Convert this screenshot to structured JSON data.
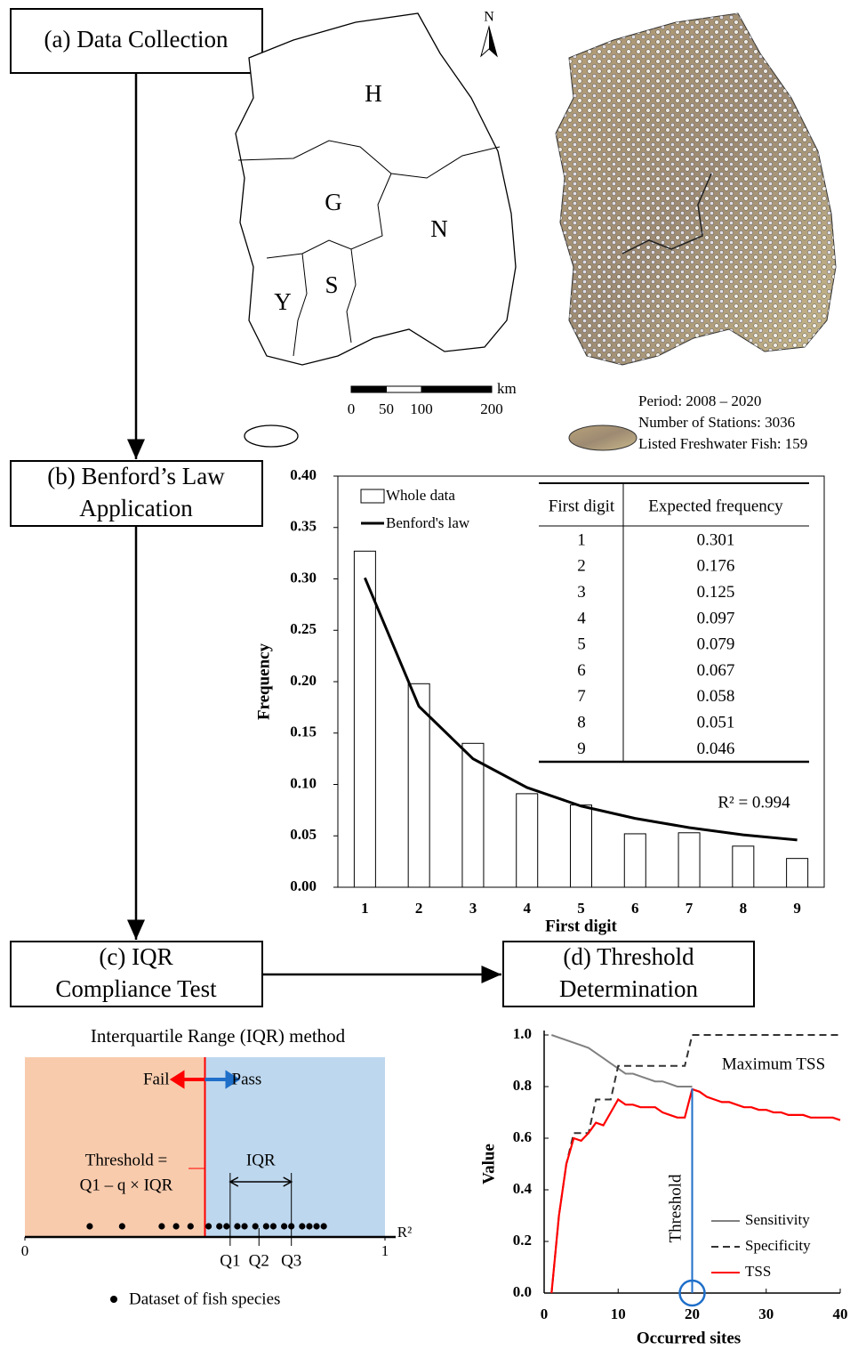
{
  "steps": [
    {
      "lines": [
        "(a) Data Collection"
      ]
    },
    {
      "lines": [
        "(b) Benford’s Law",
        "Application"
      ]
    },
    {
      "lines": [
        "(c) IQR",
        "Compliance Test"
      ]
    },
    {
      "lines": [
        "(d) Threshold",
        "Determination"
      ]
    }
  ],
  "map": {
    "north": "N",
    "regions": [
      "H",
      "G",
      "N",
      "Y",
      "S"
    ],
    "scale": {
      "ticks": [
        0,
        50,
        100,
        200
      ],
      "unit": "km"
    },
    "info": [
      "Period: 2008 – 2020",
      "Number of Stations: 3036",
      "Listed Freshwater Fish: 159"
    ]
  },
  "chart_data": [
    {
      "type": "bar_line",
      "x_label": "First digit",
      "y_label": "Frequency",
      "categories": [
        1,
        2,
        3,
        4,
        5,
        6,
        7,
        8,
        9
      ],
      "series": [
        {
          "name": "Whole data",
          "type": "bar",
          "color": "#ffffff",
          "values": [
            0.327,
            0.198,
            0.14,
            0.091,
            0.08,
            0.052,
            0.053,
            0.04,
            0.028
          ]
        },
        {
          "name": "Benford's law",
          "type": "line",
          "color": "#000000",
          "values": [
            0.301,
            0.176,
            0.125,
            0.097,
            0.079,
            0.067,
            0.058,
            0.051,
            0.046
          ]
        }
      ],
      "ylim": [
        0,
        0.4
      ],
      "yticks": [
        {
          "value": 0,
          "label": "0.00"
        },
        {
          "value": 0.05,
          "label": "0.05"
        },
        {
          "value": 0.1,
          "label": "0.10"
        },
        {
          "value": 0.15,
          "label": "0.15"
        },
        {
          "value": 0.2,
          "label": "0.20"
        },
        {
          "value": 0.25,
          "label": "0.25"
        },
        {
          "value": 0.3,
          "label": "0.30"
        },
        {
          "value": 0.35,
          "label": "0.35"
        },
        {
          "value": 0.4,
          "label": "0.40"
        }
      ],
      "table": {
        "columns": [
          "First digit",
          "Expected frequency"
        ],
        "rows": [
          [
            1,
            0.301
          ],
          [
            2,
            0.176
          ],
          [
            3,
            0.125
          ],
          [
            4,
            0.097
          ],
          [
            5,
            0.079
          ],
          [
            6,
            0.067
          ],
          [
            7,
            0.058
          ],
          [
            8,
            0.051
          ],
          [
            9,
            0.046
          ]
        ]
      },
      "annotation": "R² = 0.994"
    },
    {
      "type": "line",
      "x_label": "Occurred sites",
      "y_label": "Value",
      "xlim": [
        0,
        40
      ],
      "xticks": [
        0,
        10,
        20,
        30,
        40
      ],
      "ylim": [
        0,
        1
      ],
      "yticks": [
        {
          "value": 0,
          "label": "0.0"
        },
        {
          "value": 0.2,
          "label": "0.2"
        },
        {
          "value": 0.4,
          "label": "0.4"
        },
        {
          "value": 0.6,
          "label": "0.6"
        },
        {
          "value": 0.8,
          "label": "0.8"
        },
        {
          "value": 1,
          "label": "1.0"
        }
      ],
      "series": [
        {
          "name": "Sensitivity",
          "color": "#808080",
          "line_style": "solid",
          "x": [
            1,
            2,
            3,
            4,
            5,
            6,
            7,
            8,
            9,
            10,
            11,
            12,
            13,
            14,
            15,
            16,
            17,
            18,
            19,
            20
          ],
          "values": [
            1.0,
            0.99,
            0.98,
            0.97,
            0.96,
            0.95,
            0.93,
            0.91,
            0.89,
            0.87,
            0.85,
            0.85,
            0.84,
            0.83,
            0.82,
            0.82,
            0.81,
            0.8,
            0.8,
            0.8
          ]
        },
        {
          "name": "Specificity",
          "color": "#333333",
          "line_style": "dashed",
          "x": [
            1,
            2,
            3,
            4,
            5,
            6,
            7,
            8,
            9,
            10,
            18,
            19,
            20,
            40
          ],
          "values": [
            0,
            0.3,
            0.5,
            0.62,
            0.62,
            0.62,
            0.75,
            0.75,
            0.75,
            0.88,
            0.88,
            0.88,
            1.0,
            1.0
          ]
        },
        {
          "name": "TSS",
          "color": "#ff0000",
          "line_style": "solid",
          "x": [
            1,
            2,
            3,
            4,
            5,
            6,
            7,
            8,
            9,
            10,
            11,
            12,
            13,
            14,
            15,
            16,
            17,
            18,
            19,
            20,
            21,
            22,
            23,
            24,
            25,
            26,
            27,
            28,
            29,
            30,
            31,
            32,
            33,
            34,
            35,
            36,
            37,
            38,
            39,
            40
          ],
          "values": [
            0,
            0.3,
            0.5,
            0.6,
            0.59,
            0.62,
            0.66,
            0.65,
            0.7,
            0.75,
            0.73,
            0.73,
            0.72,
            0.72,
            0.72,
            0.7,
            0.69,
            0.68,
            0.68,
            0.79,
            0.78,
            0.76,
            0.75,
            0.74,
            0.74,
            0.73,
            0.72,
            0.72,
            0.71,
            0.71,
            0.7,
            0.7,
            0.69,
            0.69,
            0.69,
            0.68,
            0.68,
            0.68,
            0.68,
            0.67
          ]
        }
      ],
      "threshold_x": 20,
      "annotations": [
        "Maximum TSS",
        "Threshold"
      ]
    },
    {
      "type": "strip",
      "title": "Interquartile Range (IQR) method",
      "x_label": "R²",
      "xlim": [
        0,
        1
      ],
      "xticks": [
        0,
        1
      ],
      "values": [
        0.18,
        0.27,
        0.38,
        0.42,
        0.46,
        0.51,
        0.54,
        0.56,
        0.59,
        0.61,
        0.64,
        0.67,
        0.69,
        0.72,
        0.74,
        0.77,
        0.79,
        0.81,
        0.83
      ],
      "threshold": 0.5,
      "quartiles": [
        {
          "label": "Q1",
          "value": 0.57
        },
        {
          "label": "Q2",
          "value": 0.65
        },
        {
          "label": "Q3",
          "value": 0.74
        }
      ],
      "labels": {
        "fail": "Fail",
        "pass": "Pass",
        "iqr": "IQR",
        "threshold": [
          "Threshold =",
          "Q1 – q × IQR"
        ]
      },
      "legend": "Dataset of fish species",
      "colors": {
        "fail": "#f8cbad",
        "pass": "#bdd7ee"
      }
    }
  ]
}
